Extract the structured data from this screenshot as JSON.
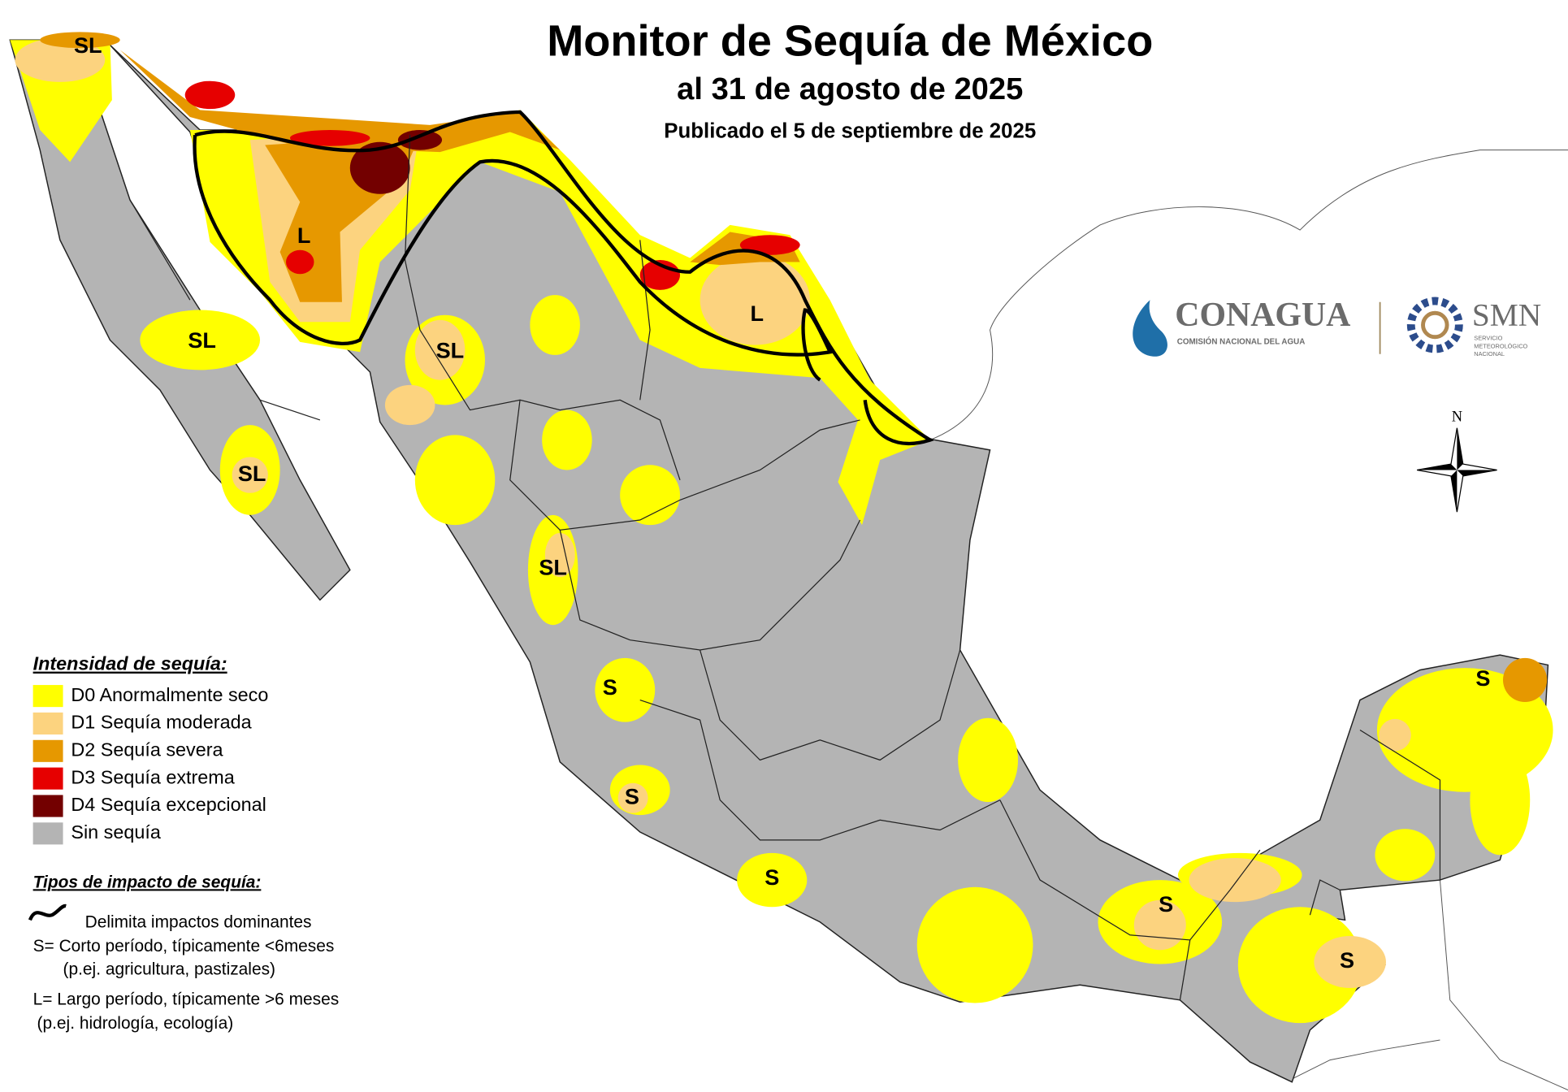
{
  "header": {
    "title": "Monitor de Sequía de México",
    "subtitle": "al 31 de agosto de 2025",
    "published": "Publicado el 5 de septiembre de 2025"
  },
  "logos": {
    "conagua": "CONAGUA",
    "conagua_sub": "COMISIÓN NACIONAL DEL AGUA",
    "smn": "SMN",
    "smn_sub": [
      "SERVICIO",
      "METEOROLÓGICO",
      "NACIONAL"
    ]
  },
  "compass": "N",
  "legend": {
    "title": "Intensidad de sequía:",
    "items": [
      {
        "label": "D0 Anormalmente seco",
        "color": "#ffff00"
      },
      {
        "label": "D1 Sequía moderada",
        "color": "#fcd37f"
      },
      {
        "label": "D2 Sequía severa",
        "color": "#e69800"
      },
      {
        "label": "D3 Sequía extrema",
        "color": "#e60000"
      },
      {
        "label": "D4 Sequía excepcional",
        "color": "#730000"
      },
      {
        "label": "Sin sequía",
        "color": "#b4b4b4"
      }
    ]
  },
  "impacts": {
    "title": "Tipos de impacto de sequía:",
    "lines": [
      "Delimita impactos dominantes",
      "S= Corto período, típicamente <6meses",
      "(p.ej. agricultura, pastizales)",
      "L= Largo período, típicamente >6 meses",
      "(p.ej. hidrología, ecología)"
    ]
  },
  "region_labels": [
    "SL",
    "L",
    "SL",
    "SL",
    "SL",
    "L",
    "SL",
    "S",
    "S",
    "S",
    "S",
    "S",
    "S"
  ]
}
